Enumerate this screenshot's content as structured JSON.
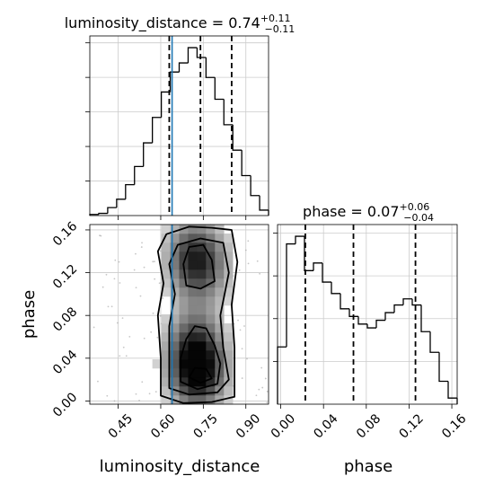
{
  "chart_data": {
    "type": "corner",
    "parameters": [
      "luminosity_distance",
      "phase"
    ],
    "truth": {
      "luminosity_distance": 0.64
    },
    "marginals": [
      {
        "parameter": "luminosity_distance",
        "title_prefix": "luminosity_distance = ",
        "median": "0.74",
        "plus": "+0.11",
        "minus": "−0.11",
        "quantiles": [
          0.63,
          0.74,
          0.85
        ],
        "range": [
          0.35,
          0.98
        ],
        "bin_edges": [
          0.35,
          0.3815,
          0.413,
          0.4445,
          0.476,
          0.5075,
          0.539,
          0.5705,
          0.602,
          0.6335,
          0.665,
          0.6965,
          0.728,
          0.7595,
          0.791,
          0.8225,
          0.854,
          0.8855,
          0.917,
          0.9485,
          0.98
        ],
        "counts": [
          0.3,
          0.6,
          2.2,
          4.5,
          8.5,
          13.5,
          20.0,
          27.0,
          34.0,
          39.5,
          42.0,
          46.2,
          43.5,
          38.0,
          32.0,
          25.0,
          18.0,
          11.0,
          5.5,
          1.5
        ]
      },
      {
        "parameter": "phase",
        "title_prefix": "phase = ",
        "median": "0.07",
        "plus": "+0.06",
        "minus": "−0.04",
        "quantiles": [
          0.023,
          0.068,
          0.126
        ],
        "range": [
          -0.003,
          0.165
        ],
        "bin_edges": [
          -0.003,
          0.0054,
          0.0138,
          0.0222,
          0.0306,
          0.039,
          0.0474,
          0.0558,
          0.0642,
          0.0726,
          0.081,
          0.0894,
          0.0978,
          0.1062,
          0.1146,
          0.123,
          0.1314,
          0.1398,
          0.1482,
          0.1566,
          0.165
        ],
        "counts": [
          7.5,
          21.0,
          22.0,
          17.5,
          18.5,
          16.0,
          14.5,
          12.5,
          11.5,
          10.5,
          10.0,
          11.0,
          12.0,
          13.0,
          13.8,
          13.0,
          9.5,
          6.8,
          3.0,
          0.8
        ]
      }
    ],
    "joint": {
      "x": "luminosity_distance",
      "y": "phase",
      "xlabel": "luminosity_distance",
      "ylabel": "phase",
      "xticks": [
        "0.45",
        "0.60",
        "0.75",
        "0.90"
      ],
      "xtick_values": [
        0.45,
        0.6,
        0.75,
        0.9
      ],
      "yticks": [
        "0.00",
        "0.04",
        "0.08",
        "0.12",
        "0.16"
      ],
      "ytick_values": [
        0.0,
        0.04,
        0.08,
        0.12,
        0.16
      ],
      "xlim": [
        0.35,
        0.98
      ],
      "ylim": [
        -0.003,
        0.165
      ],
      "peaks": [
        {
          "x": 0.73,
          "y": 0.025,
          "weight": 1.0
        },
        {
          "x": 0.72,
          "y": 0.055,
          "weight": 0.6
        },
        {
          "x": 0.71,
          "y": 0.135,
          "weight": 0.7
        },
        {
          "x": 0.76,
          "y": 0.125,
          "weight": 0.4
        }
      ],
      "contours": [
        [
          [
            0.6,
            0.005
          ],
          [
            0.68,
            -0.002
          ],
          [
            0.78,
            -0.001
          ],
          [
            0.86,
            0.004
          ],
          [
            0.86,
            0.05
          ],
          [
            0.85,
            0.09
          ],
          [
            0.87,
            0.13
          ],
          [
            0.85,
            0.16
          ],
          [
            0.78,
            0.162
          ],
          [
            0.7,
            0.163
          ],
          [
            0.62,
            0.156
          ],
          [
            0.59,
            0.14
          ],
          [
            0.61,
            0.11
          ],
          [
            0.59,
            0.08
          ],
          [
            0.6,
            0.04
          ]
        ],
        [
          [
            0.63,
            0.012
          ],
          [
            0.7,
            0.006
          ],
          [
            0.8,
            0.008
          ],
          [
            0.84,
            0.02
          ],
          [
            0.82,
            0.05
          ],
          [
            0.81,
            0.08
          ],
          [
            0.84,
            0.12
          ],
          [
            0.82,
            0.148
          ],
          [
            0.74,
            0.152
          ],
          [
            0.66,
            0.146
          ],
          [
            0.63,
            0.128
          ],
          [
            0.65,
            0.1
          ],
          [
            0.63,
            0.07
          ],
          [
            0.63,
            0.04
          ]
        ],
        [
          [
            0.67,
            0.018
          ],
          [
            0.73,
            0.011
          ],
          [
            0.8,
            0.016
          ],
          [
            0.81,
            0.035
          ],
          [
            0.79,
            0.052
          ],
          [
            0.76,
            0.068
          ],
          [
            0.72,
            0.07
          ],
          [
            0.69,
            0.058
          ],
          [
            0.67,
            0.04
          ]
        ],
        [
          [
            0.69,
            0.108
          ],
          [
            0.74,
            0.105
          ],
          [
            0.79,
            0.112
          ],
          [
            0.78,
            0.132
          ],
          [
            0.75,
            0.146
          ],
          [
            0.7,
            0.144
          ],
          [
            0.68,
            0.128
          ]
        ],
        [
          [
            0.7,
            0.022
          ],
          [
            0.74,
            0.017
          ],
          [
            0.78,
            0.021
          ],
          [
            0.76,
            0.03
          ],
          [
            0.72,
            0.031
          ]
        ]
      ]
    },
    "phase_hist_xticks": [
      "0.00",
      "0.04",
      "0.08",
      "0.12",
      "0.16"
    ],
    "phase_hist_xtick_values": [
      0.0,
      0.04,
      0.08,
      0.12,
      0.16
    ],
    "phase_xlabel": "phase",
    "grid": true,
    "colors": {
      "truth": "#1f77b4",
      "hist": "#000000",
      "grid": "#cccccc"
    }
  }
}
